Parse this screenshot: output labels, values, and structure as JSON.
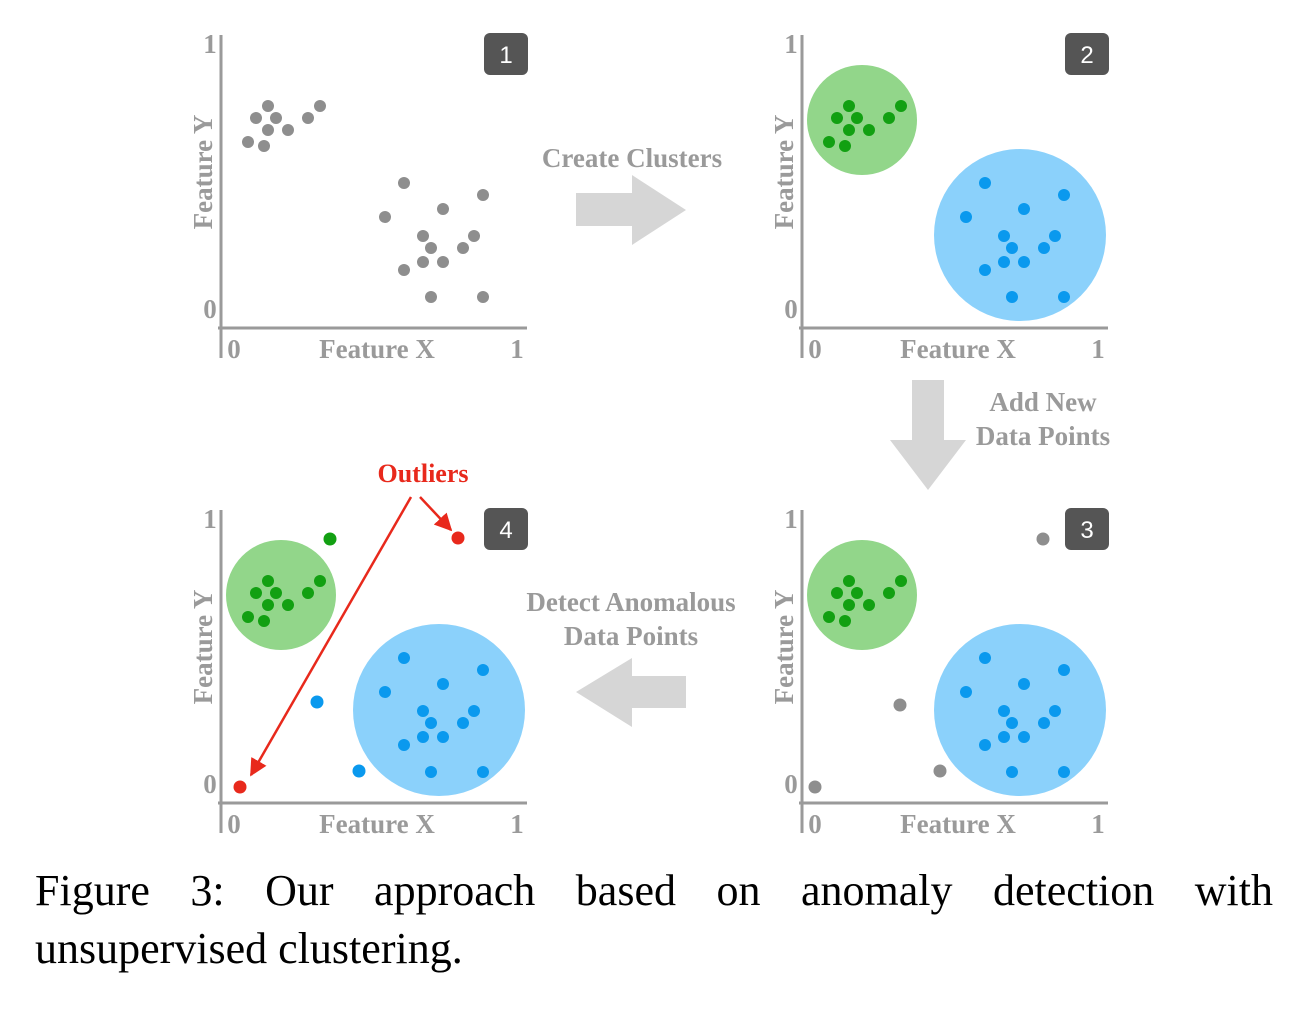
{
  "panels": [
    {
      "badge": "1",
      "y_top": "1",
      "y_bottom": "0",
      "y_label": "Feature Y",
      "x_left": "0",
      "x_right": "1",
      "x_label": "Feature X"
    },
    {
      "badge": "2",
      "y_top": "1",
      "y_bottom": "0",
      "y_label": "Feature Y",
      "x_left": "0",
      "x_right": "1",
      "x_label": "Feature X"
    },
    {
      "badge": "3",
      "y_top": "1",
      "y_bottom": "0",
      "y_label": "Feature Y",
      "x_left": "0",
      "x_right": "1",
      "x_label": "Feature X"
    },
    {
      "badge": "4",
      "y_top": "1",
      "y_bottom": "0",
      "y_label": "Feature Y",
      "x_left": "0",
      "x_right": "1",
      "x_label": "Feature X"
    }
  ],
  "arrows": [
    {
      "lines": [
        "Create Clusters"
      ]
    },
    {
      "lines": [
        "Add New",
        "Data Points"
      ]
    },
    {
      "lines": [
        "Detect Anomalous",
        "Data Points"
      ]
    }
  ],
  "annotation": "Outliers",
  "caption": {
    "lines": [
      "Figure 3: Our approach based on anomaly detection with",
      "unsupervised clustering."
    ]
  }
}
